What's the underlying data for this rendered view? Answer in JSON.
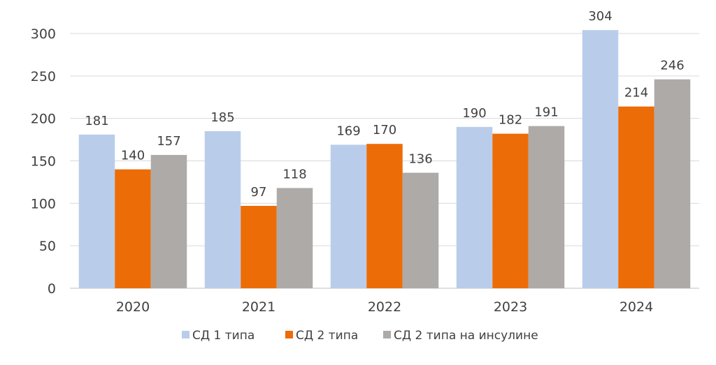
{
  "chart_data": {
    "type": "bar",
    "categories": [
      "2020",
      "2021",
      "2022",
      "2023",
      "2024"
    ],
    "series": [
      {
        "name": "СД 1 типа",
        "color": "#B9CDEB",
        "values": [
          181,
          185,
          169,
          190,
          304
        ]
      },
      {
        "name": "СД 2 типа",
        "color": "#EC6C08",
        "values": [
          140,
          97,
          170,
          182,
          214
        ]
      },
      {
        "name": "СД 2 типа  на инсулине",
        "color": "#ADAAA8",
        "values": [
          157,
          118,
          136,
          191,
          246
        ]
      }
    ],
    "ylim": [
      0,
      300
    ],
    "yticks": [
      0,
      50,
      100,
      150,
      200,
      250,
      300
    ],
    "grid": true,
    "legend": "bottom",
    "data_labels": true
  }
}
